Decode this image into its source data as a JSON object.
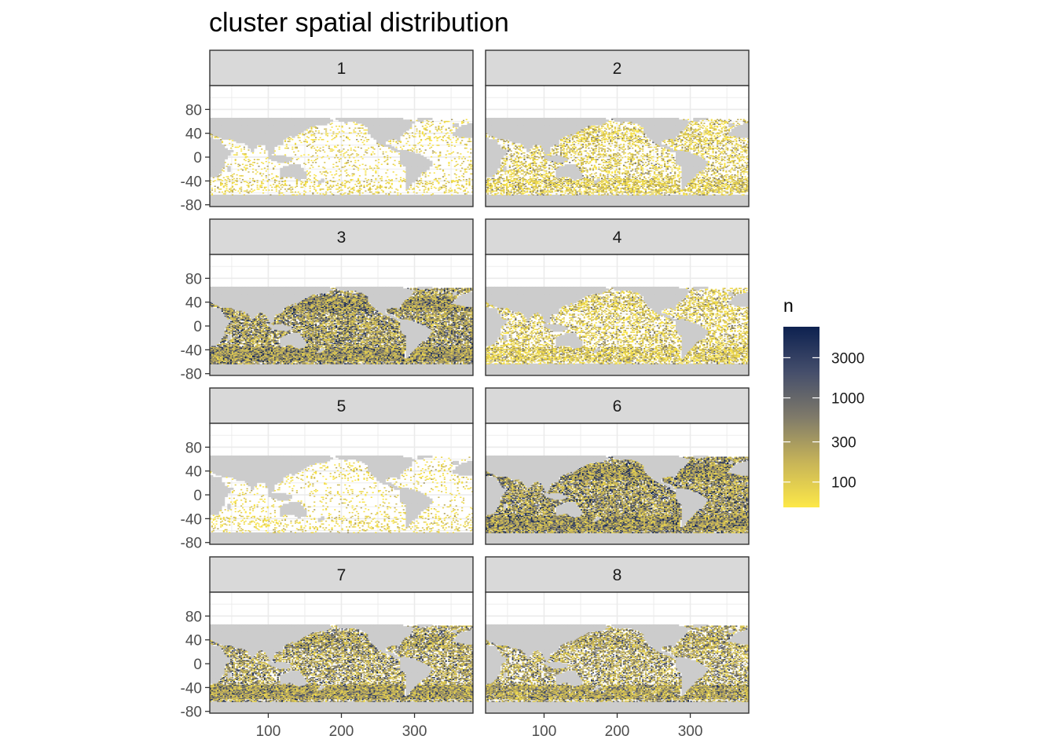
{
  "chart_data": {
    "type": "heatmap",
    "title": "cluster spatial distribution",
    "xlabel": "",
    "ylabel": "",
    "x_range": [
      20,
      380
    ],
    "y_range": [
      -83,
      120
    ],
    "x_ticks": [
      100,
      200,
      300
    ],
    "y_ticks": [
      80,
      40,
      0,
      -40,
      -80
    ],
    "grid": true,
    "facet_layout": {
      "rows": 4,
      "cols": 2
    },
    "facets": [
      {
        "label": "1",
        "density": 0.1
      },
      {
        "label": "2",
        "density": 0.32
      },
      {
        "label": "3",
        "density": 0.78
      },
      {
        "label": "4",
        "density": 0.38
      },
      {
        "label": "5",
        "density": 0.08
      },
      {
        "label": "6",
        "density": 0.82
      },
      {
        "label": "7",
        "density": 0.62
      },
      {
        "label": "8",
        "density": 0.55
      }
    ],
    "legend": {
      "title": "n",
      "position": "right",
      "scale": "log",
      "range": [
        50,
        7000
      ],
      "breaks": [
        100,
        300,
        1000,
        3000
      ],
      "break_labels": [
        "100",
        "300",
        "1000",
        "3000"
      ],
      "colors": [
        "#fde848",
        "#c7b458",
        "#7f7a6a",
        "#454e6b",
        "#0d2150"
      ]
    },
    "colors": {
      "strip_fill": "#d9d9d9",
      "land": "#cccccc",
      "ocean": "#ffffff",
      "grid": "#ebebeb",
      "border": "#333333",
      "tick_text": "#4d4d4d"
    }
  }
}
